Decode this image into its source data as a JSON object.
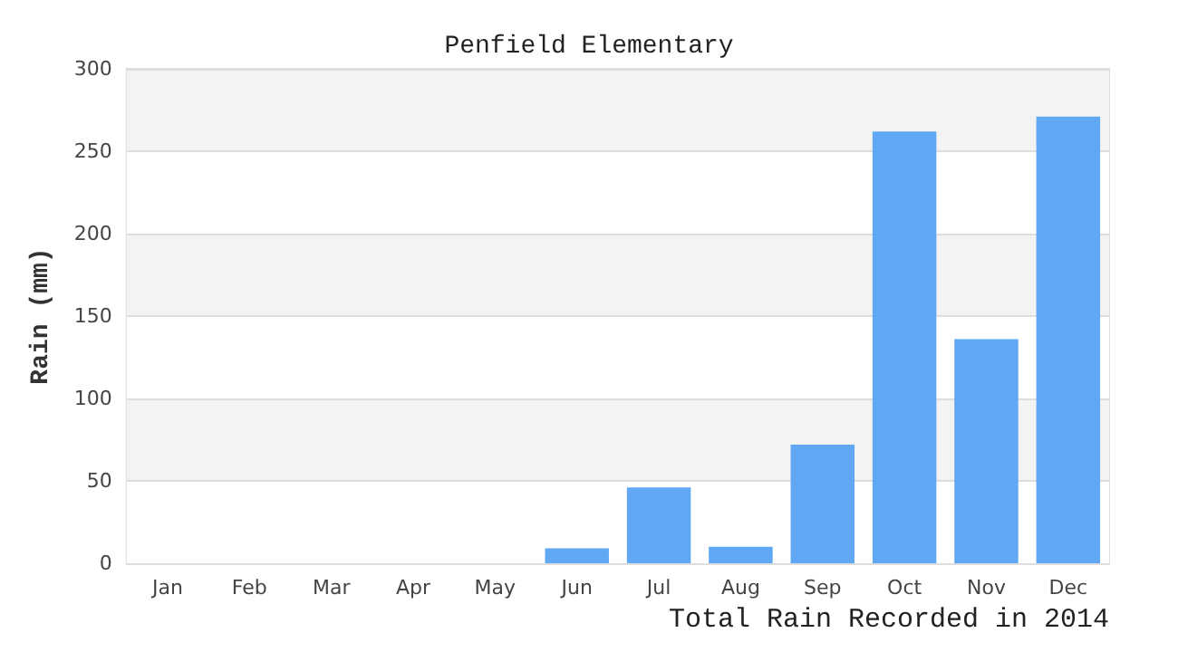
{
  "chart_data": {
    "type": "bar",
    "title": "Penfield Elementary",
    "xlabel": "Total Rain Recorded in 2014",
    "ylabel": "Rain (mm)",
    "categories": [
      "Jan",
      "Feb",
      "Mar",
      "Apr",
      "May",
      "Jun",
      "Jul",
      "Aug",
      "Sep",
      "Oct",
      "Nov",
      "Dec"
    ],
    "values": [
      0,
      0,
      0,
      0,
      0,
      9,
      46,
      10,
      72,
      262,
      136,
      271
    ],
    "color": "#60a8f4",
    "ylim": [
      0,
      300
    ],
    "yticks": [
      0,
      50,
      100,
      150,
      200,
      250,
      300
    ],
    "grid": "y"
  }
}
